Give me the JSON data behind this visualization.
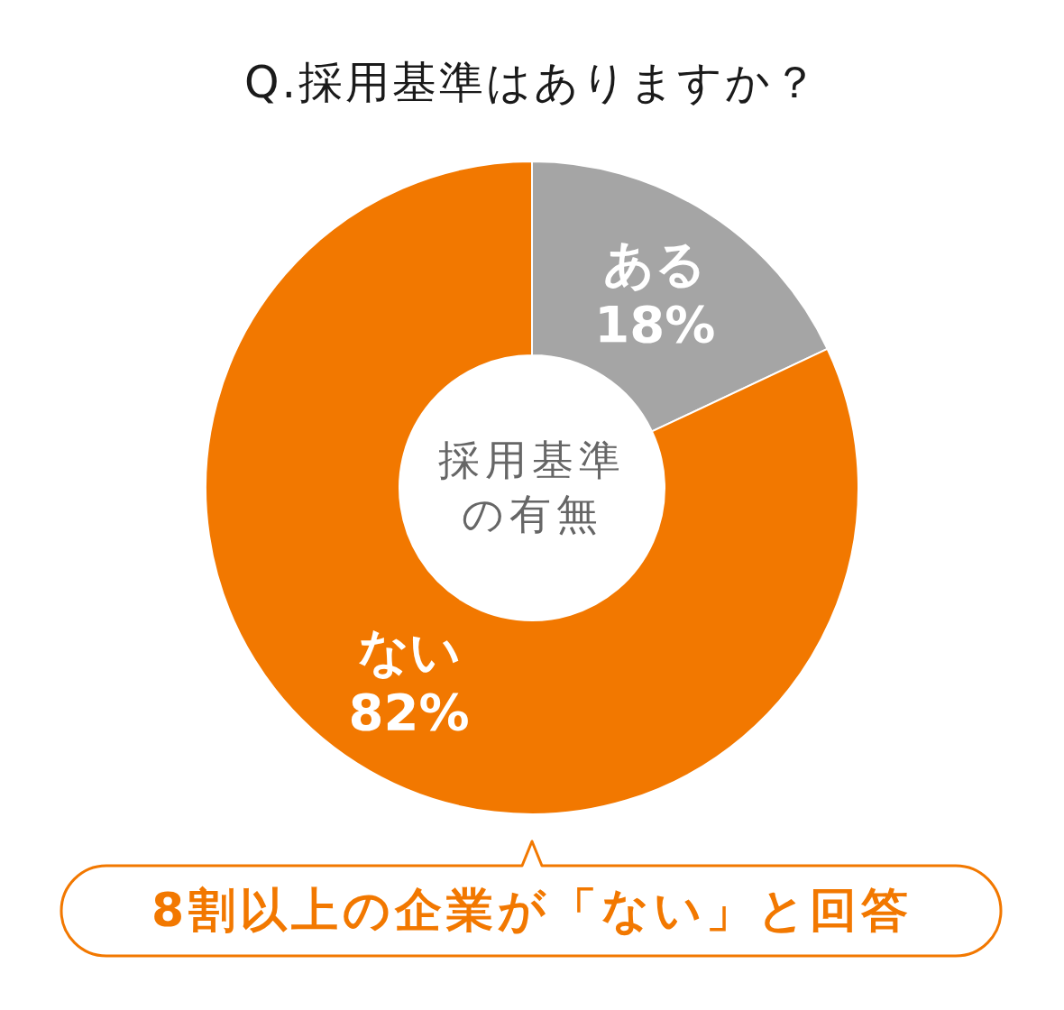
{
  "chart_data": {
    "type": "donut",
    "title": "Q.採用基準はありますか？",
    "categories": [
      "ある",
      "ない"
    ],
    "values": [
      18,
      82
    ],
    "colors": [
      "#a5a5a5",
      "#f27800"
    ],
    "value_labels": [
      "18%",
      "82%"
    ],
    "annotations": [
      "採用基準の有無",
      "8割以上の企業が「ない」と回答"
    ]
  }
}
